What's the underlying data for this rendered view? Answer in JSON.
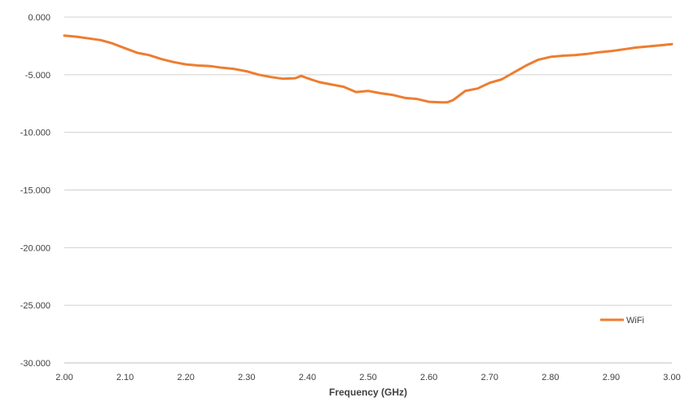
{
  "chart_data": {
    "type": "line",
    "xlabel": "Frequency (GHz)",
    "ylabel": "",
    "xlim": [
      2.0,
      3.0
    ],
    "ylim": [
      -30,
      0
    ],
    "x_ticks": [
      "2.00",
      "2.10",
      "2.20",
      "2.30",
      "2.40",
      "2.50",
      "2.60",
      "2.70",
      "2.80",
      "2.90",
      "3.00"
    ],
    "y_ticks": [
      "0.000",
      "-5.000",
      "-10.000",
      "-15.000",
      "-20.000",
      "-25.000",
      "-30.000"
    ],
    "grid": true,
    "legend_position": "bottom-right",
    "series": [
      {
        "name": "WiFi",
        "color": "#ED7D31",
        "x": [
          2.0,
          2.02,
          2.04,
          2.06,
          2.08,
          2.1,
          2.12,
          2.14,
          2.16,
          2.18,
          2.2,
          2.22,
          2.24,
          2.26,
          2.28,
          2.3,
          2.32,
          2.34,
          2.36,
          2.38,
          2.39,
          2.4,
          2.42,
          2.44,
          2.46,
          2.48,
          2.5,
          2.52,
          2.54,
          2.56,
          2.58,
          2.6,
          2.62,
          2.63,
          2.64,
          2.66,
          2.68,
          2.7,
          2.72,
          2.74,
          2.76,
          2.78,
          2.8,
          2.82,
          2.84,
          2.86,
          2.88,
          2.9,
          2.92,
          2.94,
          2.96,
          2.98,
          3.0
        ],
        "y": [
          -1.6,
          -1.7,
          -1.85,
          -2.0,
          -2.3,
          -2.7,
          -3.1,
          -3.3,
          -3.65,
          -3.9,
          -4.1,
          -4.2,
          -4.25,
          -4.4,
          -4.5,
          -4.7,
          -5.0,
          -5.2,
          -5.35,
          -5.3,
          -5.1,
          -5.3,
          -5.65,
          -5.85,
          -6.05,
          -6.5,
          -6.4,
          -6.6,
          -6.75,
          -7.0,
          -7.1,
          -7.35,
          -7.4,
          -7.4,
          -7.2,
          -6.4,
          -6.2,
          -5.7,
          -5.4,
          -4.8,
          -4.2,
          -3.7,
          -3.45,
          -3.35,
          -3.3,
          -3.2,
          -3.05,
          -2.95,
          -2.8,
          -2.65,
          -2.55,
          -2.45,
          -2.35
        ]
      }
    ]
  }
}
